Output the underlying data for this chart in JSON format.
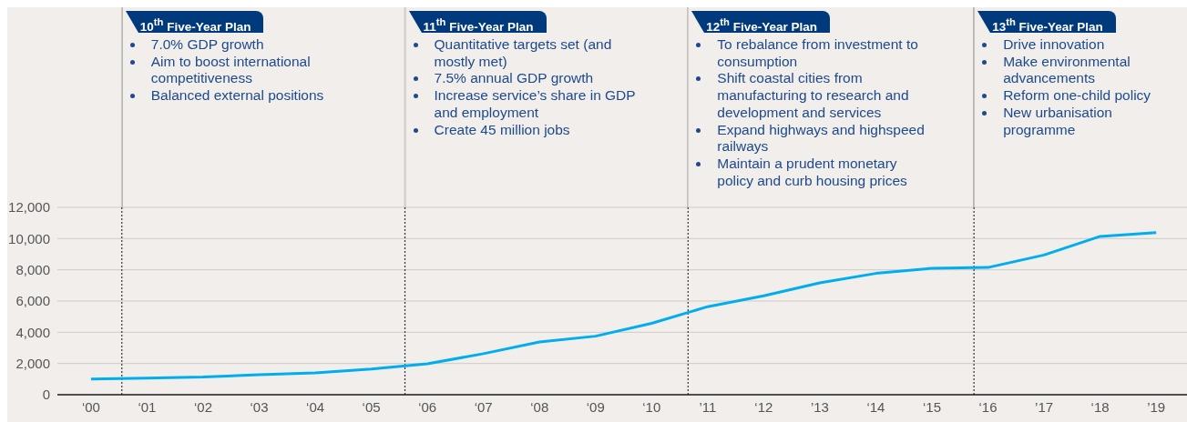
{
  "chart_data": {
    "type": "line",
    "x": [
      0,
      1,
      2,
      3,
      4,
      5,
      6,
      7,
      8,
      9,
      10,
      11,
      12,
      13,
      14,
      15,
      16,
      17,
      18,
      19
    ],
    "series": [
      {
        "color": "#00aeef",
        "values": [
          1000,
          1060,
          1130,
          1280,
          1400,
          1640,
          1980,
          2630,
          3380,
          3750,
          4570,
          5640,
          6340,
          7160,
          7770,
          8100,
          8150,
          8950,
          10140,
          10380
        ]
      }
    ],
    "xlim": [
      -0.6,
      19.55
    ],
    "xticks": [
      {
        "value": 0,
        "label": "‘00"
      },
      {
        "value": 1,
        "label": "‘01"
      },
      {
        "value": 2,
        "label": "‘02"
      },
      {
        "value": 3,
        "label": "‘03"
      },
      {
        "value": 4,
        "label": "‘04"
      },
      {
        "value": 5,
        "label": "‘05"
      },
      {
        "value": 6,
        "label": "‘06"
      },
      {
        "value": 7,
        "label": "‘07"
      },
      {
        "value": 8,
        "label": "‘08"
      },
      {
        "value": 9,
        "label": "‘09"
      },
      {
        "value": 10,
        "label": "‘10"
      },
      {
        "value": 11,
        "label": "’11"
      },
      {
        "value": 12,
        "label": "‘12"
      },
      {
        "value": 13,
        "label": "’13"
      },
      {
        "value": 14,
        "label": "‘14"
      },
      {
        "value": 15,
        "label": "‘15"
      },
      {
        "value": 16,
        "label": "‘16"
      },
      {
        "value": 17,
        "label": "’17"
      },
      {
        "value": 18,
        "label": "‘18"
      },
      {
        "value": 19,
        "label": "’19"
      }
    ],
    "ylim": [
      0,
      12000
    ],
    "yticks": [
      {
        "value": 0,
        "label": "0"
      },
      {
        "value": 2000,
        "label": "2,000"
      },
      {
        "value": 4000,
        "label": "4,000"
      },
      {
        "value": 6000,
        "label": "6,000"
      },
      {
        "value": 8000,
        "label": "8,000"
      },
      {
        "value": 10000,
        "label": "10,000"
      },
      {
        "value": 12000,
        "label": "12,000"
      }
    ],
    "grid": "y",
    "marker": "none",
    "line_style": "solid",
    "ref_lines": [
      {
        "axis": "x",
        "value": 0.55,
        "label": "10$^{th}$ Five-Year Plan\n7.0% GDP growth\nAim to boost international competitiveness\nBalanced external positions",
        "color": "#333333",
        "line_style": "dotted"
      },
      {
        "axis": "x",
        "value": 5.6,
        "label": "11$^{th}$ Five-Year Plan\nQuantitative targets set (and mostly met)\n7.5% annual GDP growth\nIncrease service’s share in GDP and employment\nCreate 45 million jobs",
        "color": "#333333",
        "line_style": "dotted"
      },
      {
        "axis": "x",
        "value": 10.65,
        "label": "12$^{th}$ Five-Year Plan\nTo rebalance from investment to consumption\nShift coastal cities from manufacturing to research and development and services\nExpand highways and highspeed railways\nMaintain a prudent monetary policy and curb housing prices",
        "color": "#333333",
        "line_style": "dotted"
      },
      {
        "axis": "x",
        "value": 15.75,
        "label": "13$^{th}$ Five-Year Plan\nDrive innovation\nMake environmental advancements\nReform one-child policy\nNew urbanisation programme",
        "color": "#333333",
        "line_style": "dotted"
      }
    ]
  }
}
